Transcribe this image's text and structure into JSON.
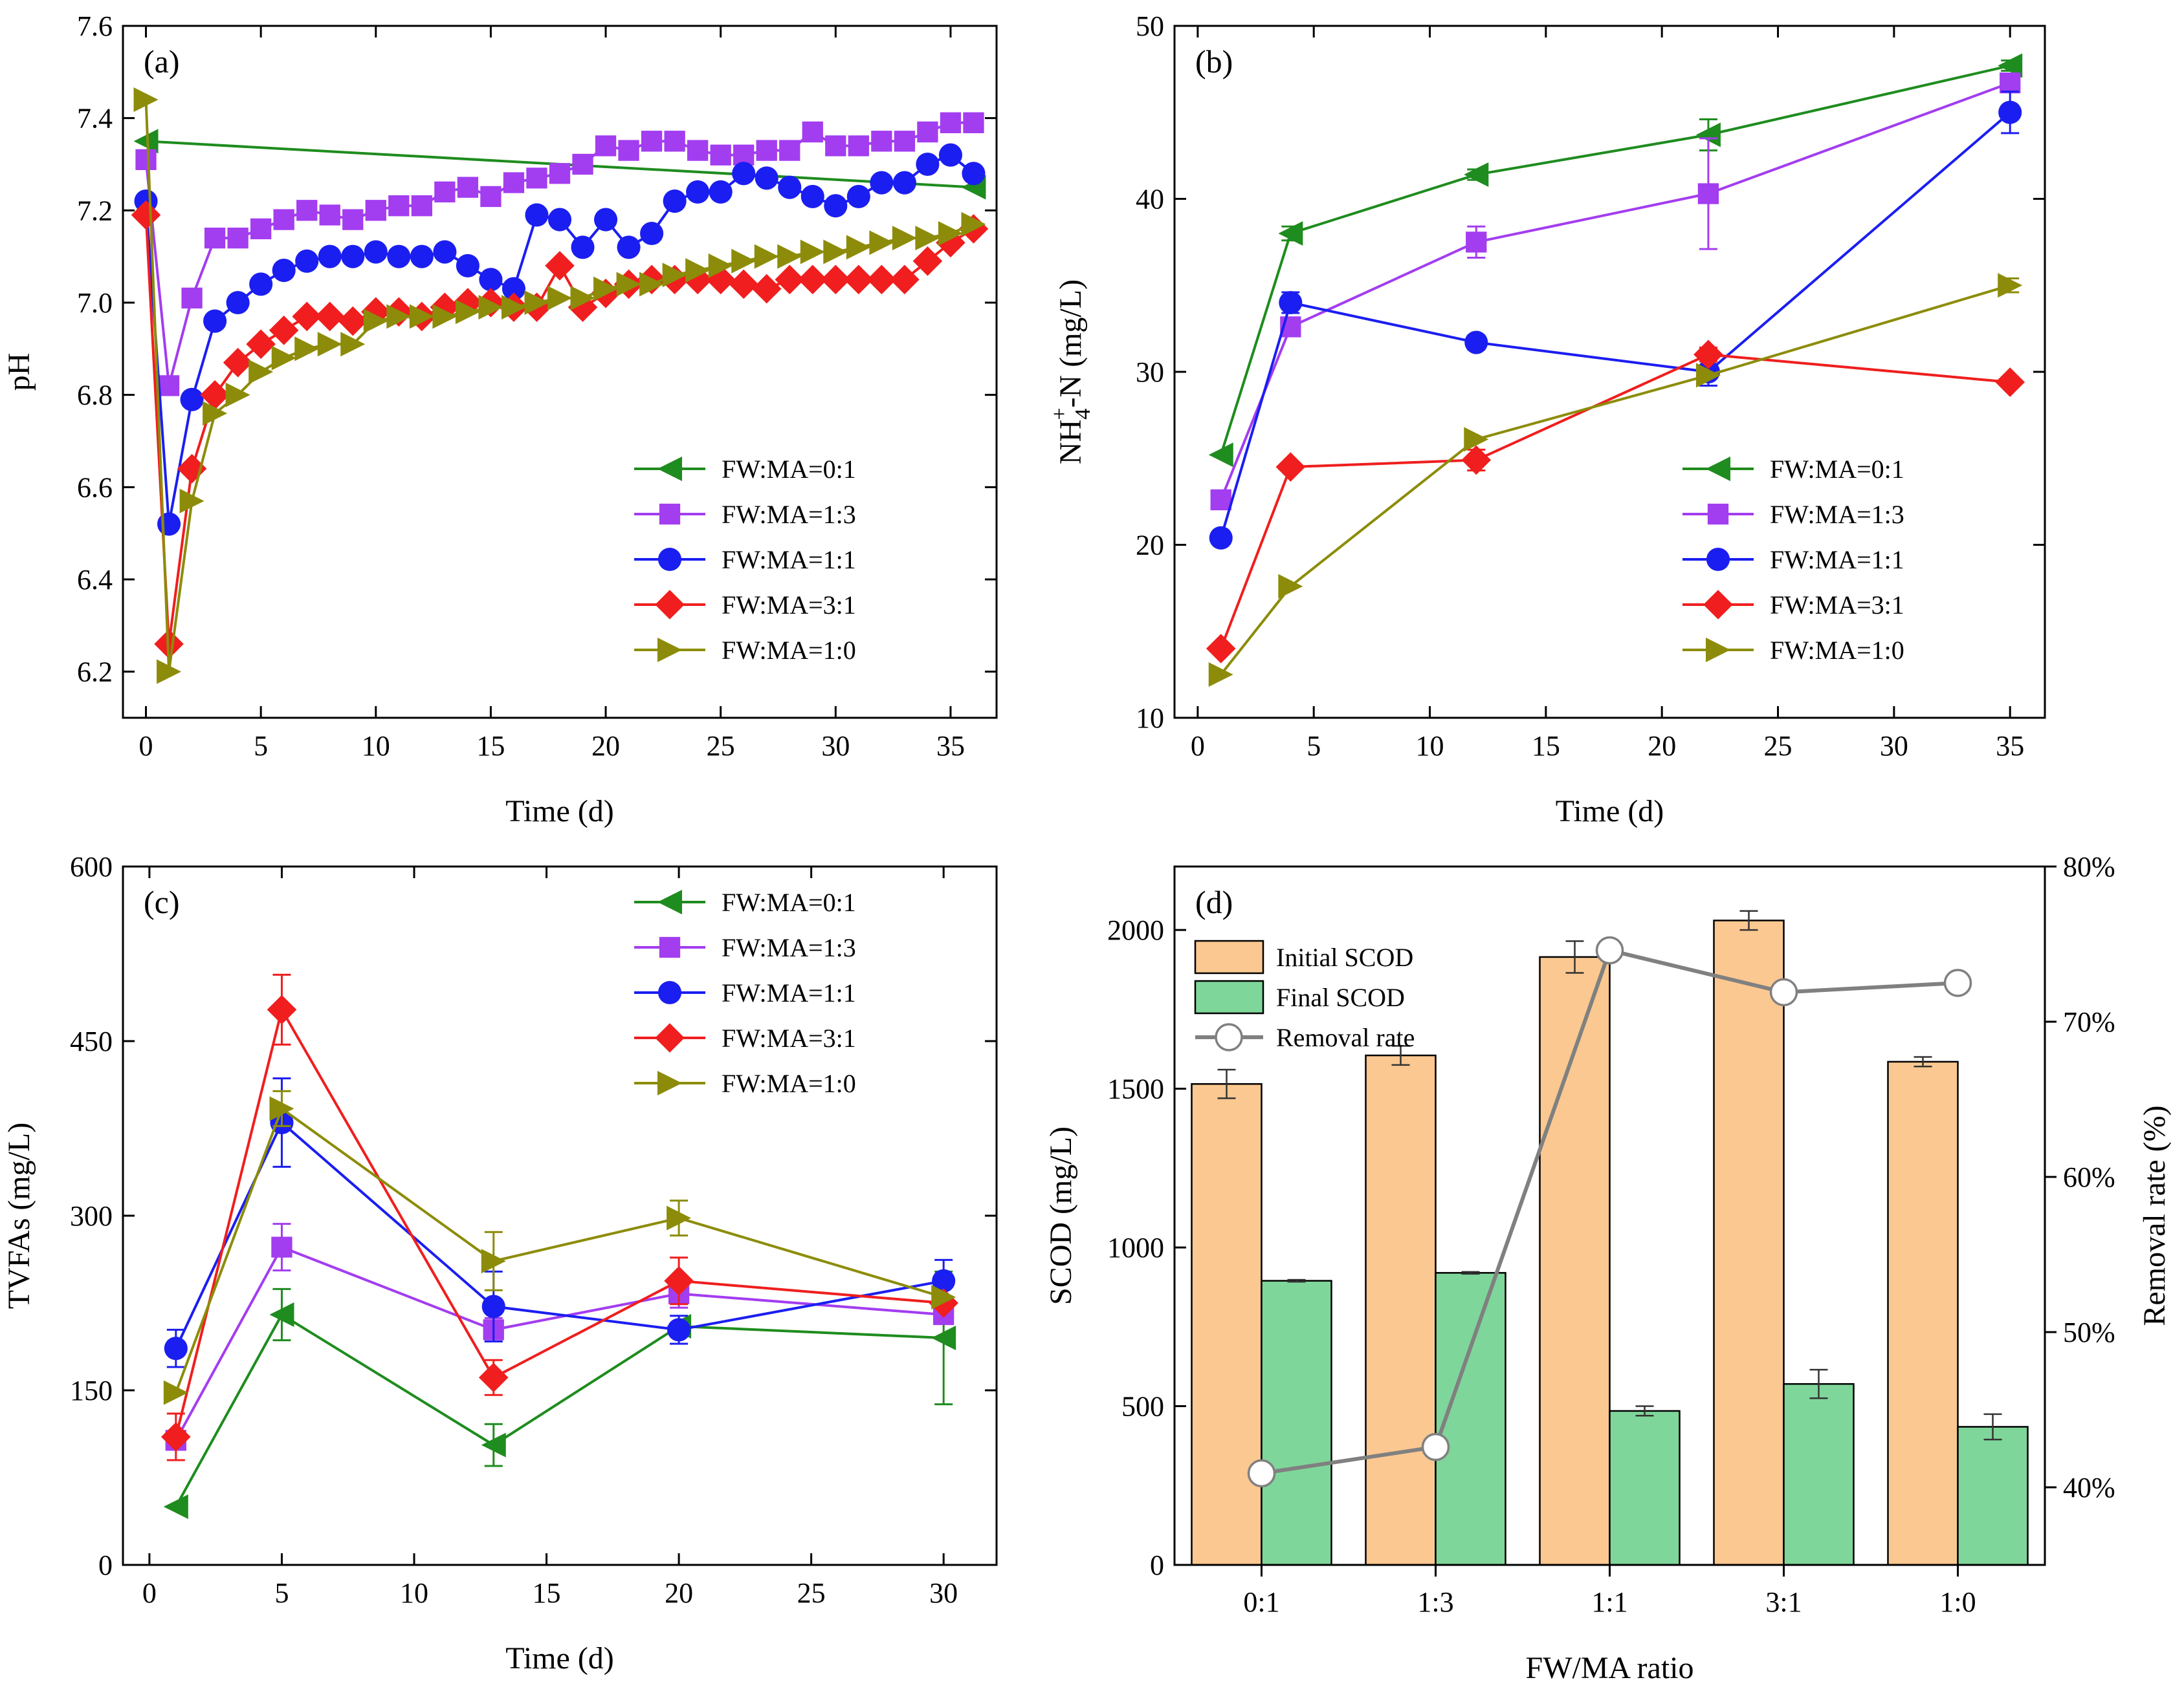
{
  "colors": {
    "s0": "#1e8c1e",
    "s1": "#a33df0",
    "s2": "#1b1ef0",
    "s3": "#f01e1e",
    "s4": "#8c8c0a",
    "initial_bar": "#fbc891",
    "final_bar": "#7fd69a",
    "removal_line": "#808080"
  },
  "chart_data": [
    {
      "id": "a",
      "type": "line",
      "panel_label": "(a)",
      "xlabel": "Time (d)",
      "ylabel": "pH",
      "xlim": [
        -1,
        37
      ],
      "ylim": [
        6.1,
        7.6
      ],
      "xticks": [
        0,
        5,
        10,
        15,
        20,
        25,
        30,
        35
      ],
      "xtick_labels": [
        "0",
        "5",
        "10",
        "15",
        "20",
        "25",
        "30",
        "35"
      ],
      "yticks": [
        6.2,
        6.4,
        6.6,
        6.8,
        7.0,
        7.2,
        7.4,
        7.6
      ],
      "ytick_labels": [
        "6.2",
        "6.4",
        "6.6",
        "6.8",
        "7.0",
        "7.2",
        "7.4",
        "7.6"
      ],
      "legend_position": "bottom-right",
      "series": [
        {
          "name": "FW:MA=0:1",
          "marker": "triangle-left",
          "color_key": "s0",
          "x": [
            0,
            36
          ],
          "y": [
            7.35,
            7.25
          ]
        },
        {
          "name": "FW:MA=1:3",
          "marker": "square",
          "color_key": "s1",
          "x": [
            0,
            1,
            2,
            3,
            4,
            5,
            6,
            7,
            8,
            9,
            10,
            11,
            12,
            13,
            14,
            15,
            16,
            17,
            18,
            19,
            20,
            21,
            22,
            23,
            24,
            25,
            26,
            27,
            28,
            29,
            30,
            31,
            32,
            33,
            34,
            35,
            36
          ],
          "y": [
            7.31,
            6.82,
            7.01,
            7.14,
            7.14,
            7.16,
            7.18,
            7.2,
            7.19,
            7.18,
            7.2,
            7.21,
            7.21,
            7.24,
            7.25,
            7.23,
            7.26,
            7.27,
            7.28,
            7.3,
            7.34,
            7.33,
            7.35,
            7.35,
            7.33,
            7.32,
            7.32,
            7.33,
            7.33,
            7.37,
            7.34,
            7.34,
            7.35,
            7.35,
            7.37,
            7.39,
            7.39
          ]
        },
        {
          "name": "FW:MA=1:1",
          "marker": "circle",
          "color_key": "s2",
          "x": [
            0,
            1,
            2,
            3,
            4,
            5,
            6,
            7,
            8,
            9,
            10,
            11,
            12,
            13,
            14,
            15,
            16,
            17,
            18,
            19,
            20,
            21,
            22,
            23,
            24,
            25,
            26,
            27,
            28,
            29,
            30,
            31,
            32,
            33,
            34,
            35,
            36
          ],
          "y": [
            7.22,
            6.52,
            6.79,
            6.96,
            7.0,
            7.04,
            7.07,
            7.09,
            7.1,
            7.1,
            7.11,
            7.1,
            7.1,
            7.11,
            7.08,
            7.05,
            7.03,
            7.19,
            7.18,
            7.12,
            7.18,
            7.12,
            7.15,
            7.22,
            7.24,
            7.24,
            7.28,
            7.27,
            7.25,
            7.23,
            7.21,
            7.23,
            7.26,
            7.26,
            7.3,
            7.32,
            7.28
          ]
        },
        {
          "name": "FW:MA=3:1",
          "marker": "diamond",
          "color_key": "s3",
          "x": [
            0,
            1,
            2,
            3,
            4,
            5,
            6,
            7,
            8,
            9,
            10,
            11,
            12,
            13,
            14,
            15,
            16,
            17,
            18,
            19,
            20,
            21,
            22,
            23,
            24,
            25,
            26,
            27,
            28,
            29,
            30,
            31,
            32,
            33,
            34,
            35,
            36
          ],
          "y": [
            7.19,
            6.26,
            6.64,
            6.8,
            6.87,
            6.91,
            6.94,
            6.97,
            6.97,
            6.96,
            6.98,
            6.98,
            6.97,
            6.99,
            7.0,
            7.0,
            6.99,
            6.99,
            7.08,
            6.99,
            7.02,
            7.04,
            7.05,
            7.05,
            7.05,
            7.05,
            7.04,
            7.03,
            7.05,
            7.05,
            7.05,
            7.05,
            7.05,
            7.05,
            7.09,
            7.13,
            7.16
          ]
        },
        {
          "name": "FW:MA=1:0",
          "marker": "triangle-right",
          "color_key": "s4",
          "x": [
            0,
            1,
            2,
            3,
            4,
            5,
            6,
            7,
            8,
            9,
            10,
            11,
            12,
            13,
            14,
            15,
            16,
            17,
            18,
            19,
            20,
            21,
            22,
            23,
            24,
            25,
            26,
            27,
            28,
            29,
            30,
            31,
            32,
            33,
            34,
            35,
            36
          ],
          "y": [
            7.44,
            6.2,
            6.57,
            6.76,
            6.8,
            6.85,
            6.88,
            6.9,
            6.91,
            6.91,
            6.96,
            6.97,
            6.97,
            6.97,
            6.98,
            6.99,
            6.99,
            7.0,
            7.01,
            7.01,
            7.03,
            7.04,
            7.04,
            7.06,
            7.07,
            7.08,
            7.09,
            7.1,
            7.1,
            7.11,
            7.11,
            7.12,
            7.13,
            7.14,
            7.14,
            7.15,
            7.17
          ]
        }
      ]
    },
    {
      "id": "b",
      "type": "line",
      "panel_label": "(b)",
      "xlabel": "Time (d)",
      "ylabel_main": "NH",
      "ylabel_sub": "4",
      "ylabel_sup": "+",
      "ylabel_rest": "-N (mg/L)",
      "xlim": [
        -1,
        36.5
      ],
      "ylim": [
        10,
        50
      ],
      "xticks": [
        0,
        5,
        10,
        15,
        20,
        25,
        30,
        35
      ],
      "xtick_labels": [
        "0",
        "5",
        "10",
        "15",
        "20",
        "25",
        "30",
        "35"
      ],
      "yticks": [
        10,
        20,
        30,
        40,
        50
      ],
      "ytick_labels": [
        "10",
        "20",
        "30",
        "40",
        "50"
      ],
      "legend_position": "bottom-right",
      "series": [
        {
          "name": "FW:MA=0:1",
          "marker": "triangle-left",
          "color_key": "s0",
          "x": [
            1,
            4,
            12,
            22,
            35
          ],
          "y": [
            25.2,
            38.0,
            41.4,
            43.7,
            47.7
          ],
          "err": [
            0,
            0.4,
            0.3,
            0.9,
            0.3
          ]
        },
        {
          "name": "FW:MA=1:3",
          "marker": "square",
          "color_key": "s1",
          "x": [
            1,
            4,
            12,
            22,
            35
          ],
          "y": [
            22.6,
            32.6,
            37.5,
            40.3,
            46.7
          ],
          "err": [
            0,
            0.5,
            0.9,
            3.2,
            0.4
          ]
        },
        {
          "name": "FW:MA=1:1",
          "marker": "circle",
          "color_key": "s2",
          "x": [
            1,
            4,
            12,
            22,
            35
          ],
          "y": [
            20.4,
            34.0,
            31.7,
            30.0,
            45.0
          ],
          "err": [
            0,
            0.6,
            0.4,
            0.8,
            1.2
          ]
        },
        {
          "name": "FW:MA=3:1",
          "marker": "diamond",
          "color_key": "s3",
          "x": [
            1,
            4,
            12,
            22,
            35
          ],
          "y": [
            14.0,
            24.5,
            24.9,
            31.0,
            29.4
          ],
          "err": [
            0,
            0,
            0.6,
            0.4,
            0
          ]
        },
        {
          "name": "FW:MA=1:0",
          "marker": "triangle-right",
          "color_key": "s4",
          "x": [
            1,
            4,
            12,
            22,
            35
          ],
          "y": [
            12.5,
            17.6,
            26.1,
            29.8,
            35.0
          ],
          "err": [
            0,
            0,
            0,
            0,
            0.4
          ]
        }
      ]
    },
    {
      "id": "c",
      "type": "line",
      "panel_label": "(c)",
      "xlabel": "Time (d)",
      "ylabel": "TVFAs (mg/L)",
      "xlim": [
        -1,
        32
      ],
      "ylim": [
        0,
        600
      ],
      "xticks": [
        0,
        5,
        10,
        15,
        20,
        25,
        30
      ],
      "xtick_labels": [
        "0",
        "5",
        "10",
        "15",
        "20",
        "25",
        "30"
      ],
      "yticks": [
        0,
        150,
        300,
        450,
        600
      ],
      "ytick_labels": [
        "0",
        "150",
        "300",
        "450",
        "600"
      ],
      "legend_position": "top-right",
      "series": [
        {
          "name": "FW:MA=0:1",
          "marker": "triangle-left",
          "color_key": "s0",
          "x": [
            1,
            5,
            13,
            20,
            30
          ],
          "y": [
            50,
            215,
            103,
            205,
            195
          ],
          "err": [
            0,
            22,
            18,
            0,
            57
          ]
        },
        {
          "name": "FW:MA=1:3",
          "marker": "square",
          "color_key": "s1",
          "x": [
            1,
            5,
            13,
            20,
            30
          ],
          "y": [
            107,
            273,
            202,
            233,
            215
          ],
          "err": [
            0,
            20,
            10,
            12,
            0
          ]
        },
        {
          "name": "FW:MA=1:1",
          "marker": "circle",
          "color_key": "s2",
          "x": [
            1,
            5,
            13,
            20,
            30
          ],
          "y": [
            186,
            380,
            222,
            202,
            244
          ],
          "err": [
            16,
            38,
            30,
            12,
            18
          ]
        },
        {
          "name": "FW:MA=3:1",
          "marker": "diamond",
          "color_key": "s3",
          "x": [
            1,
            5,
            13,
            20,
            30
          ],
          "y": [
            110,
            477,
            161,
            244,
            225
          ],
          "err": [
            20,
            30,
            15,
            20,
            0
          ]
        },
        {
          "name": "FW:MA=1:0",
          "marker": "triangle-right",
          "color_key": "s4",
          "x": [
            1,
            5,
            13,
            20,
            30
          ],
          "y": [
            148,
            392,
            261,
            298,
            230
          ],
          "err": [
            0,
            15,
            25,
            15,
            0
          ]
        }
      ]
    },
    {
      "id": "d",
      "type": "bar",
      "panel_label": "(d)",
      "xlabel": "FW/MA ratio",
      "ylabel": "SCOD (mg/L)",
      "y2label": "Removal rate (%)",
      "categories": [
        "0:1",
        "1:3",
        "1:1",
        "3:1",
        "1:0"
      ],
      "ylim": [
        0,
        2200
      ],
      "yticks": [
        0,
        500,
        1000,
        1500,
        2000
      ],
      "ytick_labels": [
        "0",
        "500",
        "1000",
        "1500",
        "2000"
      ],
      "y2lim": [
        35,
        80
      ],
      "y2ticks": [
        40,
        50,
        60,
        70,
        80
      ],
      "y2tick_labels": [
        "40%",
        "50%",
        "60%",
        "70%",
        "80%"
      ],
      "legend_position": "top-left",
      "series": [
        {
          "name": "Initial SCOD",
          "kind": "bar",
          "color_key": "initial_bar",
          "values": [
            1515,
            1605,
            1915,
            2030,
            1585
          ],
          "err": [
            45,
            30,
            50,
            30,
            15
          ]
        },
        {
          "name": "Final SCOD",
          "kind": "bar",
          "color_key": "final_bar",
          "values": [
            895,
            920,
            485,
            570,
            435
          ],
          "err": [
            3,
            3,
            15,
            45,
            40
          ]
        },
        {
          "name": "Removal rate",
          "kind": "line",
          "axis": "right",
          "color_key": "removal_line",
          "values": [
            40.9,
            42.6,
            74.6,
            71.9,
            72.5
          ]
        }
      ]
    }
  ]
}
